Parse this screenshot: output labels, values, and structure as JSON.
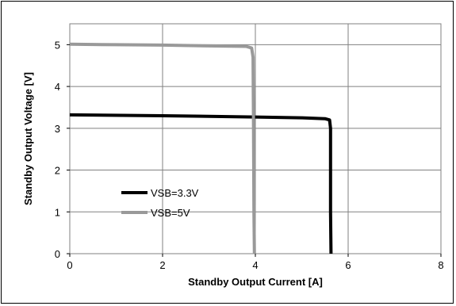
{
  "chart_data": {
    "type": "line",
    "title": "",
    "xlabel": "Standby Output Current [A]",
    "ylabel": "Standby Output Voltage [V]",
    "xlim": [
      0,
      8
    ],
    "ylim": [
      0,
      5.5
    ],
    "xticks": [
      0,
      2,
      4,
      6,
      8
    ],
    "yticks": [
      0,
      1,
      2,
      3,
      4,
      5
    ],
    "grid": true,
    "legend_position": "lower-left",
    "series": [
      {
        "name": "VSB=3.3V",
        "color": "#000000",
        "points": [
          [
            0,
            3.32
          ],
          [
            2,
            3.3
          ],
          [
            4,
            3.27
          ],
          [
            5.0,
            3.25
          ],
          [
            5.5,
            3.23
          ],
          [
            5.6,
            3.2
          ],
          [
            5.62,
            3.0
          ],
          [
            5.62,
            2.0
          ],
          [
            5.62,
            1.0
          ],
          [
            5.63,
            0
          ]
        ]
      },
      {
        "name": "VSB=5V",
        "color": "#999999",
        "points": [
          [
            0,
            5.01
          ],
          [
            1,
            5.0
          ],
          [
            2,
            4.99
          ],
          [
            3,
            4.97
          ],
          [
            3.8,
            4.96
          ],
          [
            3.92,
            4.92
          ],
          [
            3.95,
            4.7
          ],
          [
            3.96,
            3.0
          ],
          [
            3.97,
            1.0
          ],
          [
            3.98,
            0
          ]
        ]
      }
    ]
  }
}
